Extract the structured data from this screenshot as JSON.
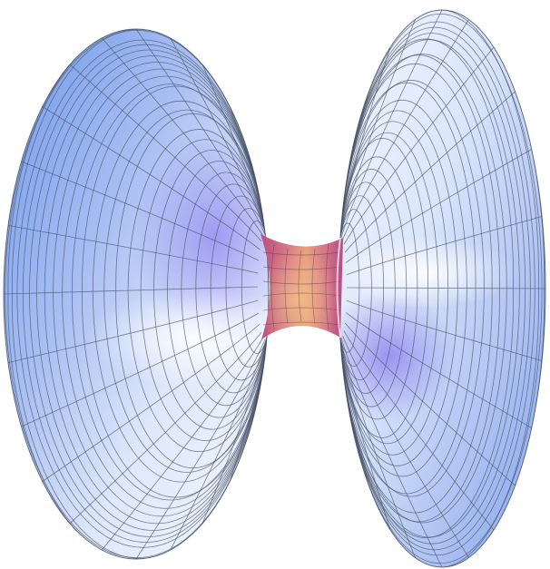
{
  "figure": {
    "type": "3d-surface-render",
    "subject": "wormhole",
    "palette": {
      "flare_outer": "#7aa2ec",
      "flare_mid": "#b9c8f4",
      "flare_light": "#eef3fd",
      "glow": "#9c8bf0",
      "throat_center": "#e89a7c",
      "throat_edge": "#c45a86",
      "mesh": "#4a5568"
    }
  }
}
